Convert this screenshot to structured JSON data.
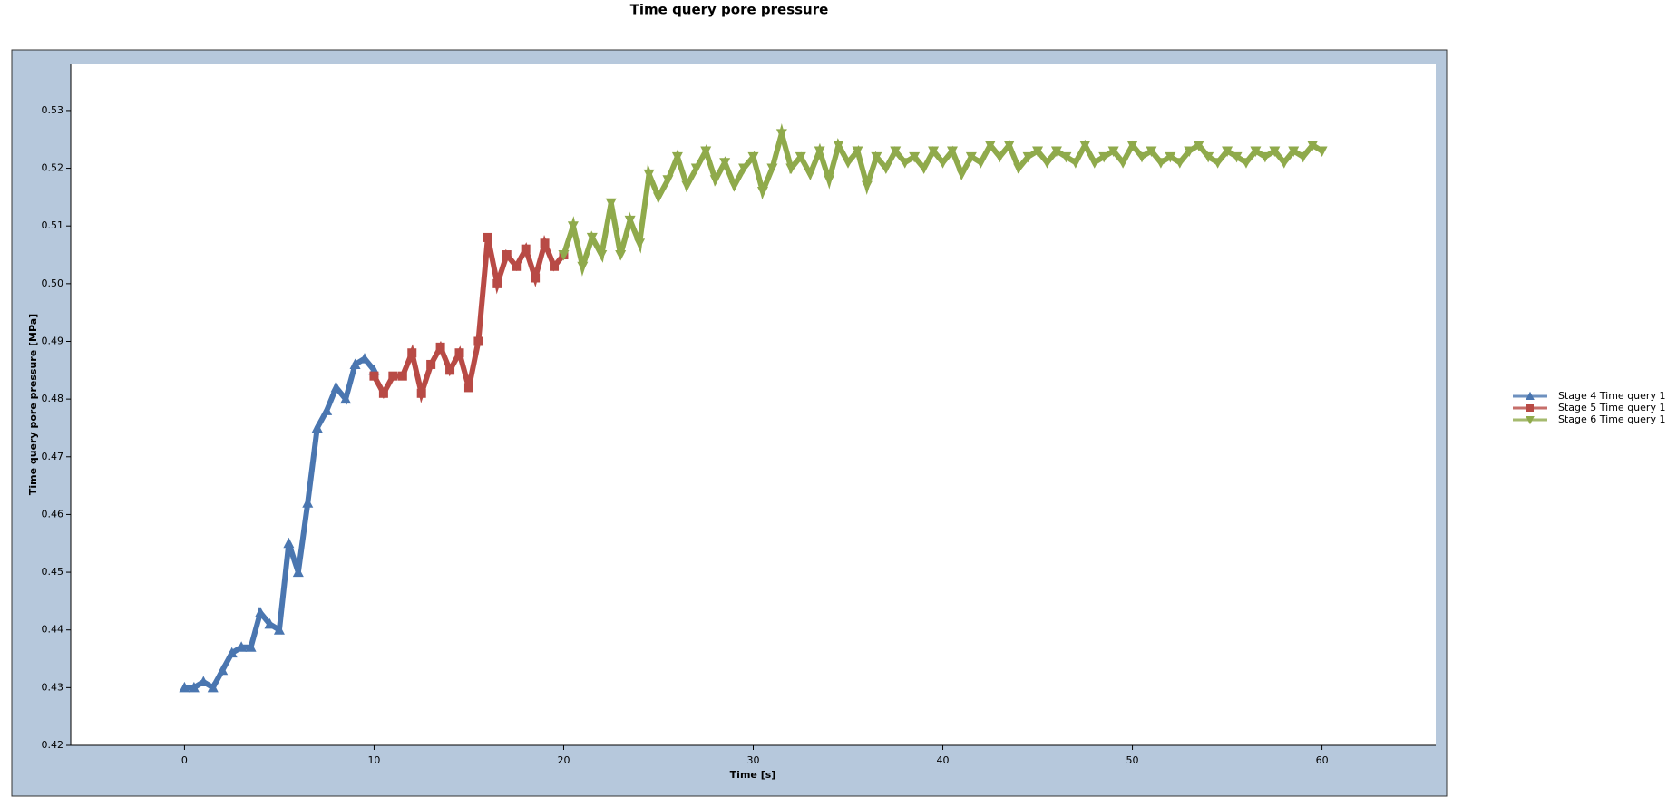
{
  "chart_data": {
    "type": "line",
    "title": "Time query pore pressure",
    "x_label": "Time [s]",
    "y_label": "Time query pore pressure [MPa]",
    "xlim": [
      -6,
      66
    ],
    "xticks": [
      0,
      10,
      20,
      30,
      40,
      50,
      60
    ],
    "ylim": [
      0.42,
      0.538
    ],
    "yticks": [
      0.42,
      0.43,
      0.44,
      0.45,
      0.46,
      0.47,
      0.48,
      0.49,
      {
        "value": 0.5,
        "label": "0.50"
      },
      0.51,
      0.52,
      0.53
    ],
    "legend": "right",
    "series": [
      {
        "name": "Stage 4 Time query 1",
        "color": "#4a76b0",
        "marker": "triangle-up",
        "x": [
          0,
          0.5,
          1,
          1.5,
          2,
          2.5,
          3,
          3.5,
          4,
          4.5,
          5,
          5.5,
          6,
          6.5,
          7,
          7.5,
          8,
          8.5,
          9,
          9.5,
          10
        ],
        "values": [
          0.43,
          0.43,
          0.431,
          0.43,
          0.433,
          0.436,
          0.437,
          0.437,
          0.443,
          0.441,
          0.44,
          0.455,
          0.45,
          0.462,
          0.475,
          0.478,
          0.482,
          0.48,
          0.486,
          0.487,
          0.485
        ]
      },
      {
        "name": "Stage 5 Time query 1",
        "color": "#b84a45",
        "marker": "square",
        "x": [
          10,
          10.5,
          11,
          11.5,
          12,
          12.5,
          13,
          13.5,
          14,
          14.5,
          15,
          15.5,
          16,
          16.5,
          17,
          17.5,
          18,
          18.5,
          19,
          19.5,
          20
        ],
        "values": [
          0.484,
          0.481,
          0.484,
          0.484,
          0.488,
          0.481,
          0.486,
          0.489,
          0.485,
          0.488,
          0.482,
          0.49,
          0.508,
          0.5,
          0.505,
          0.503,
          0.506,
          0.501,
          0.507,
          0.503,
          0.505
        ]
      },
      {
        "name": "Stage 6 Time query 1",
        "color": "#8faa4b",
        "marker": "triangle-down",
        "x": [
          20,
          20.5,
          21,
          21.5,
          22,
          22.5,
          23,
          23.5,
          24,
          24.5,
          25,
          25.5,
          26,
          26.5,
          27,
          27.5,
          28,
          28.5,
          29,
          29.5,
          30,
          30.5,
          31,
          31.5,
          32,
          32.5,
          33,
          33.5,
          34,
          34.5,
          35,
          35.5,
          36,
          36.5,
          37,
          37.5,
          38,
          38.5,
          39,
          39.5,
          40,
          40.5,
          41,
          41.5,
          42,
          42.5,
          43,
          43.5,
          44,
          44.5,
          45,
          45.5,
          46,
          46.5,
          47,
          47.5,
          48,
          48.5,
          49,
          49.5,
          50,
          50.5,
          51,
          51.5,
          52,
          52.5,
          53,
          53.5,
          54,
          54.5,
          55,
          55.5,
          56,
          56.5,
          57,
          57.5,
          58,
          58.5,
          59,
          59.5,
          60
        ],
        "values": [
          0.505,
          0.51,
          0.503,
          0.508,
          0.505,
          0.514,
          0.505,
          0.511,
          0.507,
          0.519,
          0.515,
          0.518,
          0.522,
          0.517,
          0.52,
          0.523,
          0.518,
          0.521,
          0.517,
          0.52,
          0.522,
          0.516,
          0.52,
          0.526,
          0.52,
          0.522,
          0.519,
          0.523,
          0.518,
          0.524,
          0.521,
          0.523,
          0.517,
          0.522,
          0.52,
          0.523,
          0.521,
          0.522,
          0.52,
          0.523,
          0.521,
          0.523,
          0.519,
          0.522,
          0.521,
          0.524,
          0.522,
          0.524,
          0.52,
          0.522,
          0.523,
          0.521,
          0.523,
          0.522,
          0.521,
          0.524,
          0.521,
          0.522,
          0.523,
          0.521,
          0.524,
          0.522,
          0.523,
          0.521,
          0.522,
          0.521,
          0.523,
          0.524,
          0.522,
          0.521,
          0.523,
          0.522,
          0.521,
          0.523,
          0.522,
          0.523,
          0.521,
          0.523,
          0.522,
          0.524,
          0.523
        ]
      }
    ]
  }
}
